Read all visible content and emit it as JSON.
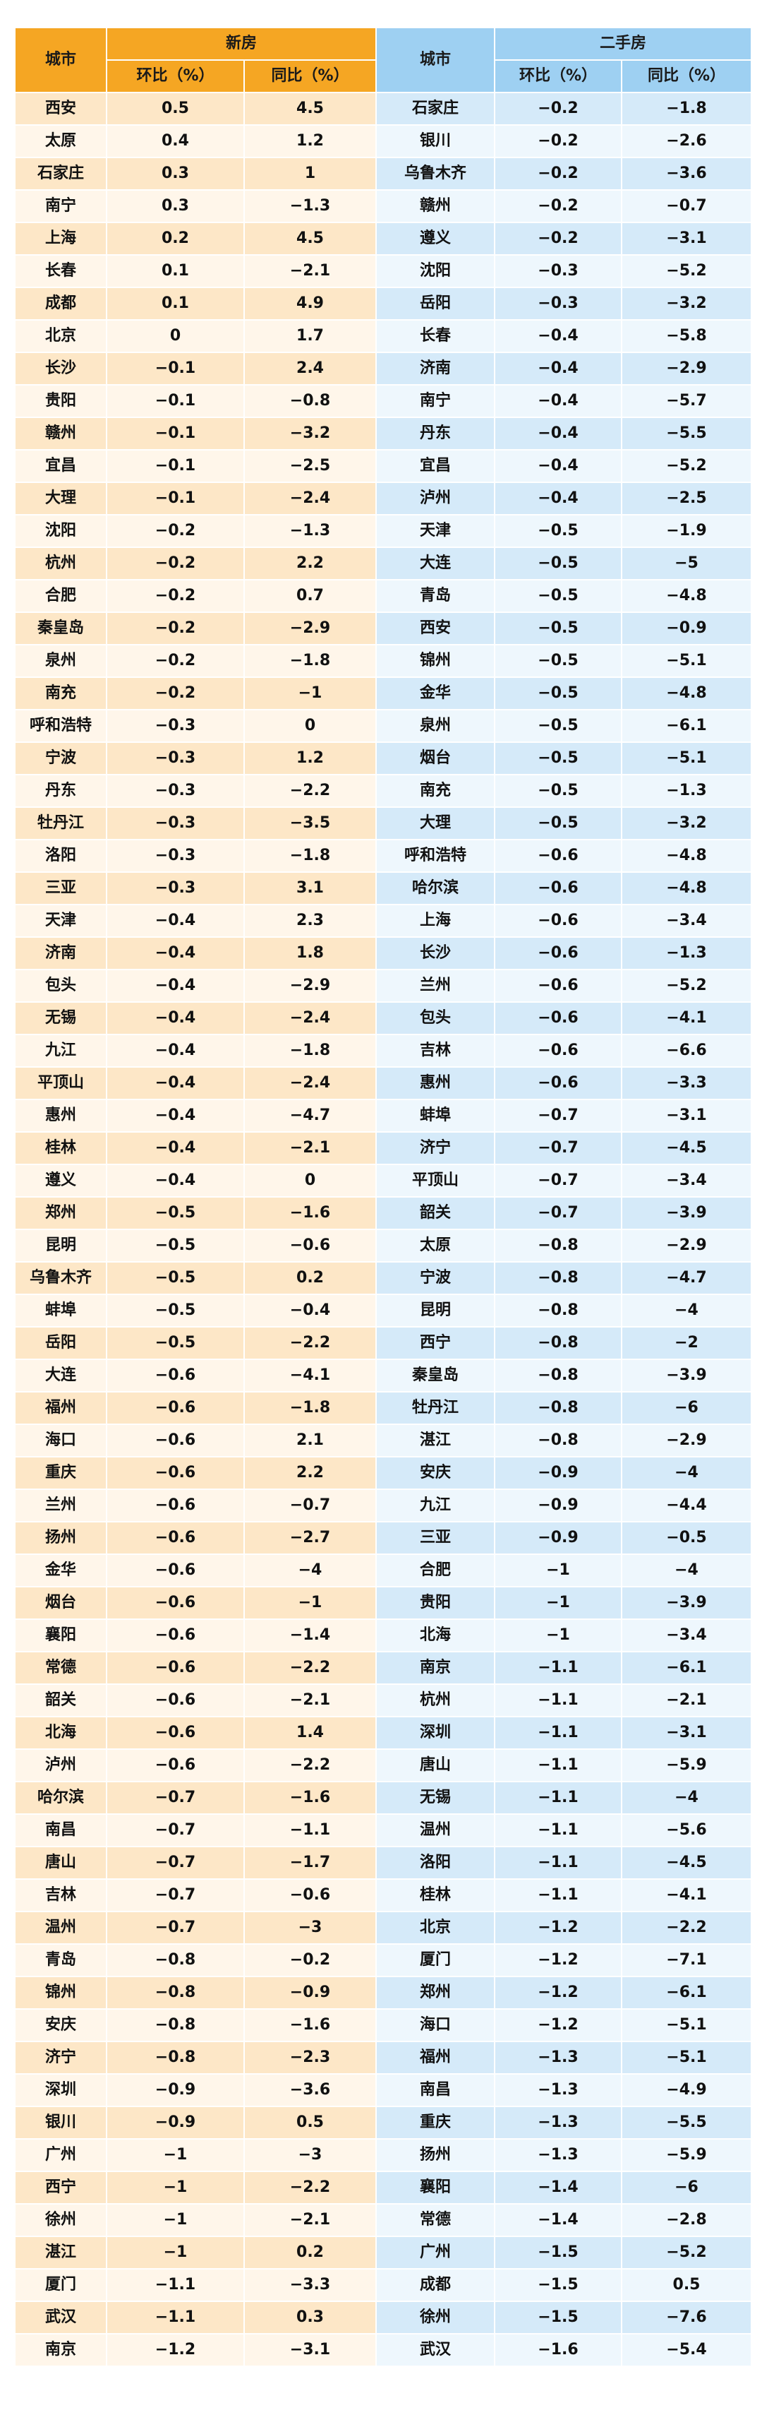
{
  "new_house": {
    "header": {
      "city": "城市",
      "group": "新房",
      "mom": "环比（%）",
      "yoy": "同比（%）"
    },
    "rows": [
      {
        "city": "西安",
        "mom": "0.5",
        "yoy": "4.5"
      },
      {
        "city": "太原",
        "mom": "0.4",
        "yoy": "1.2"
      },
      {
        "city": "石家庄",
        "mom": "0.3",
        "yoy": "1"
      },
      {
        "city": "南宁",
        "mom": "0.3",
        "yoy": "−1.3"
      },
      {
        "city": "上海",
        "mom": "0.2",
        "yoy": "4.5"
      },
      {
        "city": "长春",
        "mom": "0.1",
        "yoy": "−2.1"
      },
      {
        "city": "成都",
        "mom": "0.1",
        "yoy": "4.9"
      },
      {
        "city": "北京",
        "mom": "0",
        "yoy": "1.7"
      },
      {
        "city": "长沙",
        "mom": "−0.1",
        "yoy": "2.4"
      },
      {
        "city": "贵阳",
        "mom": "−0.1",
        "yoy": "−0.8"
      },
      {
        "city": "赣州",
        "mom": "−0.1",
        "yoy": "−3.2"
      },
      {
        "city": "宜昌",
        "mom": "−0.1",
        "yoy": "−2.5"
      },
      {
        "city": "大理",
        "mom": "−0.1",
        "yoy": "−2.4"
      },
      {
        "city": "沈阳",
        "mom": "−0.2",
        "yoy": "−1.3"
      },
      {
        "city": "杭州",
        "mom": "−0.2",
        "yoy": "2.2"
      },
      {
        "city": "合肥",
        "mom": "−0.2",
        "yoy": "0.7"
      },
      {
        "city": "秦皇岛",
        "mom": "−0.2",
        "yoy": "−2.9"
      },
      {
        "city": "泉州",
        "mom": "−0.2",
        "yoy": "−1.8"
      },
      {
        "city": "南充",
        "mom": "−0.2",
        "yoy": "−1"
      },
      {
        "city": "呼和浩特",
        "mom": "−0.3",
        "yoy": "0"
      },
      {
        "city": "宁波",
        "mom": "−0.3",
        "yoy": "1.2"
      },
      {
        "city": "丹东",
        "mom": "−0.3",
        "yoy": "−2.2"
      },
      {
        "city": "牡丹江",
        "mom": "−0.3",
        "yoy": "−3.5"
      },
      {
        "city": "洛阳",
        "mom": "−0.3",
        "yoy": "−1.8"
      },
      {
        "city": "三亚",
        "mom": "−0.3",
        "yoy": "3.1"
      },
      {
        "city": "天津",
        "mom": "−0.4",
        "yoy": "2.3"
      },
      {
        "city": "济南",
        "mom": "−0.4",
        "yoy": "1.8"
      },
      {
        "city": "包头",
        "mom": "−0.4",
        "yoy": "−2.9"
      },
      {
        "city": "无锡",
        "mom": "−0.4",
        "yoy": "−2.4"
      },
      {
        "city": "九江",
        "mom": "−0.4",
        "yoy": "−1.8"
      },
      {
        "city": "平顶山",
        "mom": "−0.4",
        "yoy": "−2.4"
      },
      {
        "city": "惠州",
        "mom": "−0.4",
        "yoy": "−4.7"
      },
      {
        "city": "桂林",
        "mom": "−0.4",
        "yoy": "−2.1"
      },
      {
        "city": "遵义",
        "mom": "−0.4",
        "yoy": "0"
      },
      {
        "city": "郑州",
        "mom": "−0.5",
        "yoy": "−1.6"
      },
      {
        "city": "昆明",
        "mom": "−0.5",
        "yoy": "−0.6"
      },
      {
        "city": "乌鲁木齐",
        "mom": "−0.5",
        "yoy": "0.2"
      },
      {
        "city": "蚌埠",
        "mom": "−0.5",
        "yoy": "−0.4"
      },
      {
        "city": "岳阳",
        "mom": "−0.5",
        "yoy": "−2.2"
      },
      {
        "city": "大连",
        "mom": "−0.6",
        "yoy": "−4.1"
      },
      {
        "city": "福州",
        "mom": "−0.6",
        "yoy": "−1.8"
      },
      {
        "city": "海口",
        "mom": "−0.6",
        "yoy": "2.1"
      },
      {
        "city": "重庆",
        "mom": "−0.6",
        "yoy": "2.2"
      },
      {
        "city": "兰州",
        "mom": "−0.6",
        "yoy": "−0.7"
      },
      {
        "city": "扬州",
        "mom": "−0.6",
        "yoy": "−2.7"
      },
      {
        "city": "金华",
        "mom": "−0.6",
        "yoy": "−4"
      },
      {
        "city": "烟台",
        "mom": "−0.6",
        "yoy": "−1"
      },
      {
        "city": "襄阳",
        "mom": "−0.6",
        "yoy": "−1.4"
      },
      {
        "city": "常德",
        "mom": "−0.6",
        "yoy": "−2.2"
      },
      {
        "city": "韶关",
        "mom": "−0.6",
        "yoy": "−2.1"
      },
      {
        "city": "北海",
        "mom": "−0.6",
        "yoy": "1.4"
      },
      {
        "city": "泸州",
        "mom": "−0.6",
        "yoy": "−2.2"
      },
      {
        "city": "哈尔滨",
        "mom": "−0.7",
        "yoy": "−1.6"
      },
      {
        "city": "南昌",
        "mom": "−0.7",
        "yoy": "−1.1"
      },
      {
        "city": "唐山",
        "mom": "−0.7",
        "yoy": "−1.7"
      },
      {
        "city": "吉林",
        "mom": "−0.7",
        "yoy": "−0.6"
      },
      {
        "city": "温州",
        "mom": "−0.7",
        "yoy": "−3"
      },
      {
        "city": "青岛",
        "mom": "−0.8",
        "yoy": "−0.2"
      },
      {
        "city": "锦州",
        "mom": "−0.8",
        "yoy": "−0.9"
      },
      {
        "city": "安庆",
        "mom": "−0.8",
        "yoy": "−1.6"
      },
      {
        "city": "济宁",
        "mom": "−0.8",
        "yoy": "−2.3"
      },
      {
        "city": "深圳",
        "mom": "−0.9",
        "yoy": "−3.6"
      },
      {
        "city": "银川",
        "mom": "−0.9",
        "yoy": "0.5"
      },
      {
        "city": "广州",
        "mom": "−1",
        "yoy": "−3"
      },
      {
        "city": "西宁",
        "mom": "−1",
        "yoy": "−2.2"
      },
      {
        "city": "徐州",
        "mom": "−1",
        "yoy": "−2.1"
      },
      {
        "city": "湛江",
        "mom": "−1",
        "yoy": "0.2"
      },
      {
        "city": "厦门",
        "mom": "−1.1",
        "yoy": "−3.3"
      },
      {
        "city": "武汉",
        "mom": "−1.1",
        "yoy": "0.3"
      },
      {
        "city": "南京",
        "mom": "−1.2",
        "yoy": "−3.1"
      }
    ]
  },
  "second_hand": {
    "header": {
      "city": "城市",
      "group": "二手房",
      "mom": "环比（%）",
      "yoy": "同比（%）"
    },
    "rows": [
      {
        "city": "石家庄",
        "mom": "−0.2",
        "yoy": "−1.8"
      },
      {
        "city": "银川",
        "mom": "−0.2",
        "yoy": "−2.6"
      },
      {
        "city": "乌鲁木齐",
        "mom": "−0.2",
        "yoy": "−3.6"
      },
      {
        "city": "赣州",
        "mom": "−0.2",
        "yoy": "−0.7"
      },
      {
        "city": "遵义",
        "mom": "−0.2",
        "yoy": "−3.1"
      },
      {
        "city": "沈阳",
        "mom": "−0.3",
        "yoy": "−5.2"
      },
      {
        "city": "岳阳",
        "mom": "−0.3",
        "yoy": "−3.2"
      },
      {
        "city": "长春",
        "mom": "−0.4",
        "yoy": "−5.8"
      },
      {
        "city": "济南",
        "mom": "−0.4",
        "yoy": "−2.9"
      },
      {
        "city": "南宁",
        "mom": "−0.4",
        "yoy": "−5.7"
      },
      {
        "city": "丹东",
        "mom": "−0.4",
        "yoy": "−5.5"
      },
      {
        "city": "宜昌",
        "mom": "−0.4",
        "yoy": "−5.2"
      },
      {
        "city": "泸州",
        "mom": "−0.4",
        "yoy": "−2.5"
      },
      {
        "city": "天津",
        "mom": "−0.5",
        "yoy": "−1.9"
      },
      {
        "city": "大连",
        "mom": "−0.5",
        "yoy": "−5"
      },
      {
        "city": "青岛",
        "mom": "−0.5",
        "yoy": "−4.8"
      },
      {
        "city": "西安",
        "mom": "−0.5",
        "yoy": "−0.9"
      },
      {
        "city": "锦州",
        "mom": "−0.5",
        "yoy": "−5.1"
      },
      {
        "city": "金华",
        "mom": "−0.5",
        "yoy": "−4.8"
      },
      {
        "city": "泉州",
        "mom": "−0.5",
        "yoy": "−6.1"
      },
      {
        "city": "烟台",
        "mom": "−0.5",
        "yoy": "−5.1"
      },
      {
        "city": "南充",
        "mom": "−0.5",
        "yoy": "−1.3"
      },
      {
        "city": "大理",
        "mom": "−0.5",
        "yoy": "−3.2"
      },
      {
        "city": "呼和浩特",
        "mom": "−0.6",
        "yoy": "−4.8"
      },
      {
        "city": "哈尔滨",
        "mom": "−0.6",
        "yoy": "−4.8"
      },
      {
        "city": "上海",
        "mom": "−0.6",
        "yoy": "−3.4"
      },
      {
        "city": "长沙",
        "mom": "−0.6",
        "yoy": "−1.3"
      },
      {
        "city": "兰州",
        "mom": "−0.6",
        "yoy": "−5.2"
      },
      {
        "city": "包头",
        "mom": "−0.6",
        "yoy": "−4.1"
      },
      {
        "city": "吉林",
        "mom": "−0.6",
        "yoy": "−6.6"
      },
      {
        "city": "惠州",
        "mom": "−0.6",
        "yoy": "−3.3"
      },
      {
        "city": "蚌埠",
        "mom": "−0.7",
        "yoy": "−3.1"
      },
      {
        "city": "济宁",
        "mom": "−0.7",
        "yoy": "−4.5"
      },
      {
        "city": "平顶山",
        "mom": "−0.7",
        "yoy": "−3.4"
      },
      {
        "city": "韶关",
        "mom": "−0.7",
        "yoy": "−3.9"
      },
      {
        "city": "太原",
        "mom": "−0.8",
        "yoy": "−2.9"
      },
      {
        "city": "宁波",
        "mom": "−0.8",
        "yoy": "−4.7"
      },
      {
        "city": "昆明",
        "mom": "−0.8",
        "yoy": "−4"
      },
      {
        "city": "西宁",
        "mom": "−0.8",
        "yoy": "−2"
      },
      {
        "city": "秦皇岛",
        "mom": "−0.8",
        "yoy": "−3.9"
      },
      {
        "city": "牡丹江",
        "mom": "−0.8",
        "yoy": "−6"
      },
      {
        "city": "湛江",
        "mom": "−0.8",
        "yoy": "−2.9"
      },
      {
        "city": "安庆",
        "mom": "−0.9",
        "yoy": "−4"
      },
      {
        "city": "九江",
        "mom": "−0.9",
        "yoy": "−4.4"
      },
      {
        "city": "三亚",
        "mom": "−0.9",
        "yoy": "−0.5"
      },
      {
        "city": "合肥",
        "mom": "−1",
        "yoy": "−4"
      },
      {
        "city": "贵阳",
        "mom": "−1",
        "yoy": "−3.9"
      },
      {
        "city": "北海",
        "mom": "−1",
        "yoy": "−3.4"
      },
      {
        "city": "南京",
        "mom": "−1.1",
        "yoy": "−6.1"
      },
      {
        "city": "杭州",
        "mom": "−1.1",
        "yoy": "−2.1"
      },
      {
        "city": "深圳",
        "mom": "−1.1",
        "yoy": "−3.1"
      },
      {
        "city": "唐山",
        "mom": "−1.1",
        "yoy": "−5.9"
      },
      {
        "city": "无锡",
        "mom": "−1.1",
        "yoy": "−4"
      },
      {
        "city": "温州",
        "mom": "−1.1",
        "yoy": "−5.6"
      },
      {
        "city": "洛阳",
        "mom": "−1.1",
        "yoy": "−4.5"
      },
      {
        "city": "桂林",
        "mom": "−1.1",
        "yoy": "−4.1"
      },
      {
        "city": "北京",
        "mom": "−1.2",
        "yoy": "−2.2"
      },
      {
        "city": "厦门",
        "mom": "−1.2",
        "yoy": "−7.1"
      },
      {
        "city": "郑州",
        "mom": "−1.2",
        "yoy": "−6.1"
      },
      {
        "city": "海口",
        "mom": "−1.2",
        "yoy": "−5.1"
      },
      {
        "city": "福州",
        "mom": "−1.3",
        "yoy": "−5.1"
      },
      {
        "city": "南昌",
        "mom": "−1.3",
        "yoy": "−4.9"
      },
      {
        "city": "重庆",
        "mom": "−1.3",
        "yoy": "−5.5"
      },
      {
        "city": "扬州",
        "mom": "−1.3",
        "yoy": "−5.9"
      },
      {
        "city": "襄阳",
        "mom": "−1.4",
        "yoy": "−6"
      },
      {
        "city": "常德",
        "mom": "−1.4",
        "yoy": "−2.8"
      },
      {
        "city": "广州",
        "mom": "−1.5",
        "yoy": "−5.2"
      },
      {
        "city": "成都",
        "mom": "−1.5",
        "yoy": "0.5"
      },
      {
        "city": "徐州",
        "mom": "−1.5",
        "yoy": "−7.6"
      },
      {
        "city": "武汉",
        "mom": "−1.6",
        "yoy": "−5.4"
      }
    ]
  },
  "colors": {
    "new_header": "#f5a623",
    "new_row_a": "#fde7c7",
    "new_row_b": "#fff6ea",
    "old_header": "#9ed0f2",
    "old_row_a": "#d5eaf9",
    "old_row_b": "#eef7fd"
  }
}
